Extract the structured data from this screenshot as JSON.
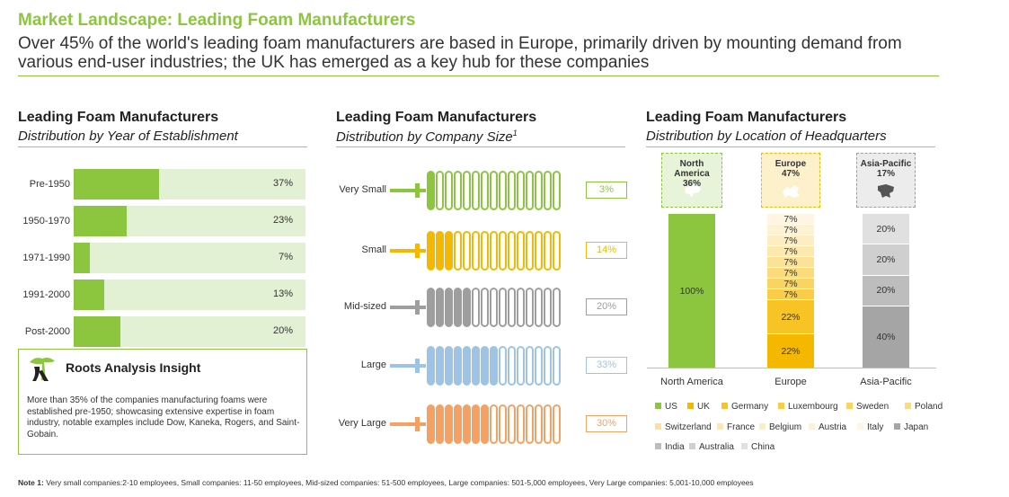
{
  "header": {
    "title": "Market Landscape: Leading Foam Manufacturers",
    "subtitle": "Over 45% of the world's leading foam manufacturers are based in Europe, primarily driven by mounting demand from various end-user industries; the UK has emerged as a key hub for these companies"
  },
  "panels": {
    "year": {
      "title": "Leading Foam Manufacturers",
      "subtitle": "Distribution by Year of Establishment"
    },
    "size": {
      "title": "Leading Foam Manufacturers",
      "subtitle": "Distribution by Company Size",
      "superscript": "1"
    },
    "location": {
      "title": "Leading Foam Manufacturers",
      "subtitle": "Distribution by Location of Headquarters"
    }
  },
  "colors": {
    "accent_green": "#8cc63f",
    "light_green": "#e2f0d3",
    "text": "#333333"
  },
  "insight": {
    "logo_icon": "tree-logo-icon",
    "title": "Roots Analysis Insight",
    "text": "More than 35% of the companies manufacturing foams were established pre-1950; showcasing extensive expertise in foam industry, notable examples include Dow, Kaneka, Rogers, and Saint-Gobain."
  },
  "chart_data": [
    {
      "type": "bar",
      "orientation": "horizontal",
      "categories": [
        "Pre-1950",
        "1950-1970",
        "1971-1990",
        "1991-2000",
        "Post-2000"
      ],
      "values": [
        37,
        23,
        7,
        13,
        20
      ],
      "labels": [
        "37%",
        "23%",
        "7%",
        "13%",
        "20%"
      ],
      "xlim": [
        0,
        100
      ],
      "color": "#8cc63f",
      "track_color": "#e2f0d3"
    },
    {
      "type": "bar",
      "style": "pictorial-springs",
      "categories": [
        "Very Small",
        "Small",
        "Mid-sized",
        "Large",
        "Very Large"
      ],
      "values": [
        3,
        14,
        20,
        33,
        30
      ],
      "labels": [
        "3%",
        "14%",
        "20%",
        "33%",
        "30%"
      ],
      "colors": [
        "#8cc63f",
        "#f5b800",
        "#9e9e9e",
        "#9dc3e6",
        "#f4a163"
      ]
    },
    {
      "type": "bar",
      "stacked": true,
      "categories": [
        "North America",
        "Europe",
        "Asia-Pacific"
      ],
      "region_shares": [
        {
          "name": "North America",
          "pct": "36%",
          "color": "#8cc63f",
          "map_icon": "north-america-map-icon"
        },
        {
          "name": "Europe",
          "pct": "47%",
          "color": "#f5b800",
          "map_icon": "europe-map-icon"
        },
        {
          "name": "Asia-Pacific",
          "pct": "17%",
          "color": "#9e9e9e",
          "map_icon": "asia-pacific-map-icon"
        }
      ],
      "stacks": [
        {
          "category": "North America",
          "segments": [
            {
              "name": "US",
              "value": 100,
              "label": "100%",
              "color": "#8cc63f"
            }
          ]
        },
        {
          "category": "Europe",
          "segments": [
            {
              "name": "UK",
              "value": 22,
              "label": "22%",
              "color": "#f5b800"
            },
            {
              "name": "Germany",
              "value": 22,
              "label": "22%",
              "color": "#f7c325"
            },
            {
              "name": "Luxembourg",
              "value": 7,
              "label": "7%",
              "color": "#f9cc4a"
            },
            {
              "name": "Sweden",
              "value": 7,
              "label": "7%",
              "color": "#fad462"
            },
            {
              "name": "Poland",
              "value": 7,
              "label": "7%",
              "color": "#fbdb7c"
            },
            {
              "name": "Switzerland",
              "value": 7,
              "label": "7%",
              "color": "#fce296"
            },
            {
              "name": "France",
              "value": 7,
              "label": "7%",
              "color": "#fde8ad"
            },
            {
              "name": "Belgium",
              "value": 7,
              "label": "7%",
              "color": "#fdedc2"
            },
            {
              "name": "Austria",
              "value": 7,
              "label": "7%",
              "color": "#fef2d4"
            },
            {
              "name": "Italy",
              "value": 7,
              "label": "7%",
              "color": "#fef6e3"
            }
          ]
        },
        {
          "category": "Asia-Pacific",
          "segments": [
            {
              "name": "Japan",
              "value": 40,
              "label": "40%",
              "color": "#a5a5a5"
            },
            {
              "name": "India",
              "value": 20,
              "label": "20%",
              "color": "#bdbdbd"
            },
            {
              "name": "Australia",
              "value": 20,
              "label": "20%",
              "color": "#cfcfcf"
            },
            {
              "name": "China",
              "value": 20,
              "label": "20%",
              "color": "#e0e0e0"
            }
          ]
        }
      ],
      "ylim": [
        0,
        100
      ],
      "legend": [
        "US",
        "UK",
        "Germany",
        "Luxembourg",
        "Sweden",
        "Poland",
        "Switzerland",
        "France",
        "Belgium",
        "Austria",
        "Italy",
        "Japan",
        "India",
        "Australia",
        "China"
      ],
      "legend_position": "bottom"
    }
  ],
  "note": {
    "label": "Note 1:",
    "text": "Very small companies:2-10 employees, Small companies: 11-50 employees, Mid-sized companies: 51-500 employees, Large companies: 501-5,000 employees, Very Large companies: 5,001-10,000 employees"
  }
}
